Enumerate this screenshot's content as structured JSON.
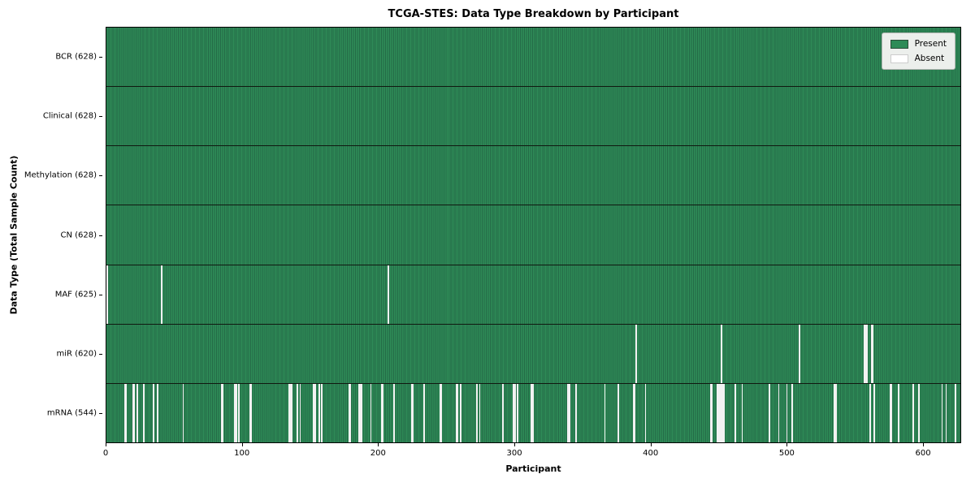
{
  "chart_data": {
    "type": "heatmap",
    "title": "TCGA-STES: Data Type Breakdown by Participant",
    "xlabel": "Participant",
    "ylabel": "Data Type (Total Sample Count)",
    "x_range": [
      0,
      628
    ],
    "x_ticks": [
      0,
      100,
      200,
      300,
      400,
      500,
      600
    ],
    "grid": false,
    "legend_position": "upper right",
    "legend": [
      "Present",
      "Absent"
    ],
    "colors": {
      "present": "#2e8b57",
      "present_edge": "#246b47",
      "absent": "#f2f2f2",
      "row_divider": "#101810",
      "spine": "#000000",
      "legend_bg": "#ecefec",
      "legend_border": "#b0b4b0"
    },
    "rows": [
      {
        "data_type": "BCR",
        "label": "BCR (628)",
        "present_count": 628,
        "absent_participants": []
      },
      {
        "data_type": "Clinical",
        "label": "Clinical (628)",
        "present_count": 628,
        "absent_participants": []
      },
      {
        "data_type": "Methylation",
        "label": "Methylation (628)",
        "present_count": 628,
        "absent_participants": []
      },
      {
        "data_type": "CN",
        "label": "CN (628)",
        "present_count": 628,
        "absent_participants": []
      },
      {
        "data_type": "MAF",
        "label": "MAF (625)",
        "present_count": 625,
        "absent_participants": [
          0,
          40,
          207
        ]
      },
      {
        "data_type": "miR",
        "label": "miR (620)",
        "present_count": 620,
        "absent_participants": [
          389,
          452,
          509,
          557,
          558,
          559,
          562,
          563
        ]
      },
      {
        "data_type": "mRNA",
        "label": "mRNA (544)",
        "present_count": 544,
        "absent_participants": [
          13,
          14,
          19,
          20,
          22,
          27,
          34,
          37,
          56,
          84,
          85,
          94,
          95,
          97,
          105,
          106,
          134,
          135,
          136,
          140,
          142,
          152,
          153,
          156,
          158,
          178,
          179,
          185,
          186,
          187,
          194,
          202,
          203,
          211,
          224,
          225,
          233,
          245,
          246,
          257,
          258,
          260,
          272,
          274,
          291,
          299,
          300,
          302,
          312,
          313,
          339,
          340,
          345,
          366,
          376,
          387,
          388,
          396,
          444,
          445,
          449,
          450,
          451,
          452,
          453,
          454,
          462,
          467,
          487,
          494,
          500,
          504,
          535,
          536,
          561,
          564,
          576,
          577,
          582,
          593,
          597,
          614,
          617,
          624
        ]
      }
    ]
  }
}
